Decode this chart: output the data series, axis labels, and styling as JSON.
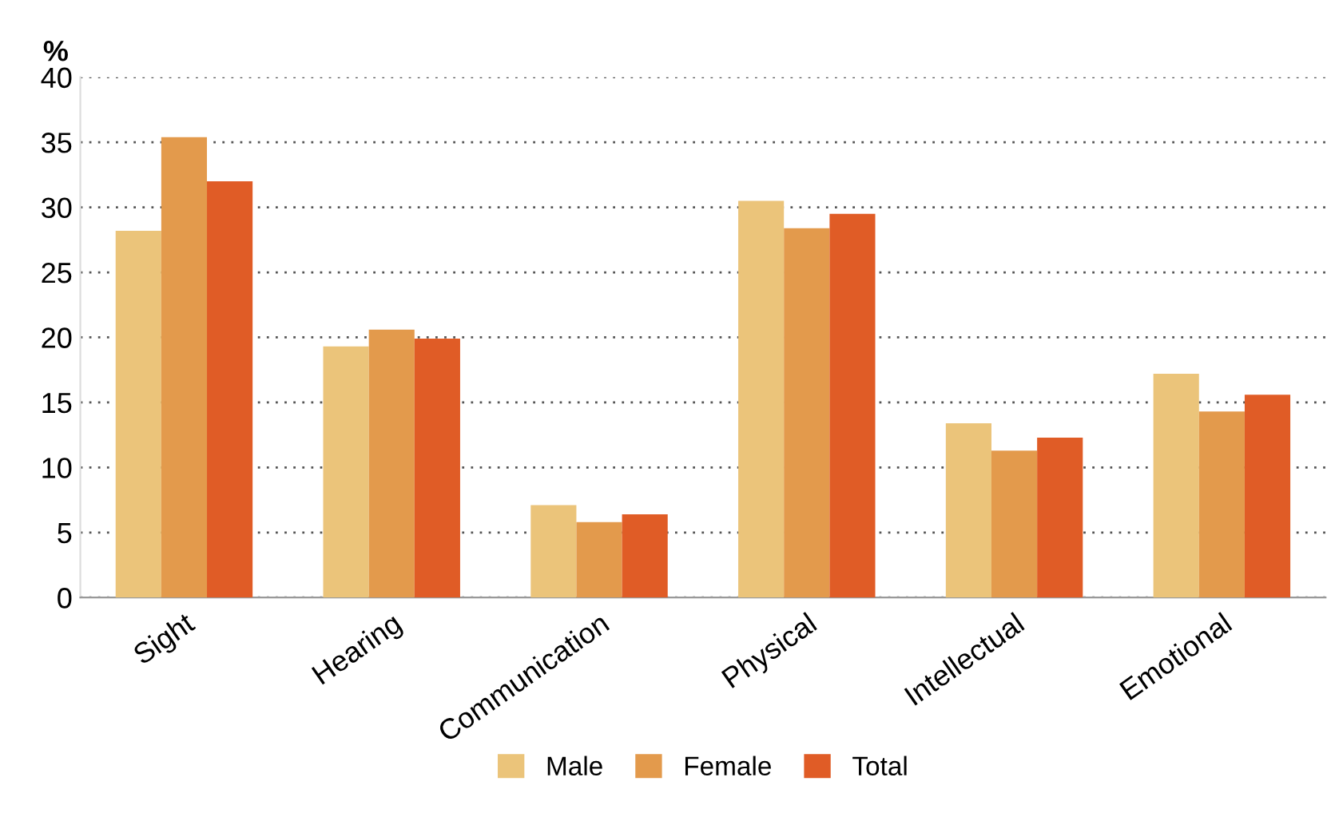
{
  "chart_data": {
    "type": "bar",
    "ylabel": "%",
    "categories": [
      "Sight",
      "Hearing",
      "Communication",
      "Physical",
      "Intellectual",
      "Emotional"
    ],
    "series": [
      {
        "name": "Male",
        "color": "#ebc47a",
        "values": [
          28.2,
          19.3,
          7.1,
          30.5,
          13.4,
          17.2
        ]
      },
      {
        "name": "Female",
        "color": "#e39a4c",
        "values": [
          35.4,
          20.6,
          5.8,
          28.4,
          11.3,
          14.3
        ]
      },
      {
        "name": "Total",
        "color": "#e05c26",
        "values": [
          32.0,
          19.9,
          6.4,
          29.5,
          12.3,
          15.6
        ]
      }
    ],
    "ylim": [
      0,
      40
    ],
    "yticks": [
      0,
      5,
      10,
      15,
      20,
      25,
      30,
      35,
      40
    ],
    "grid": "y",
    "legend": "bottom"
  }
}
